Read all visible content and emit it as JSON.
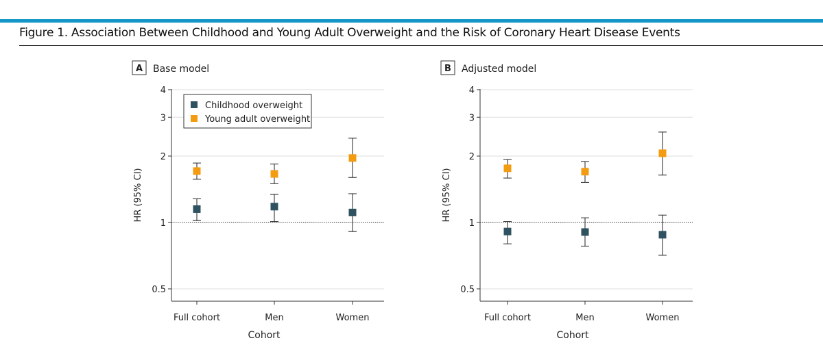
{
  "figure_title": "Figure 1. Association Between Childhood and Young Adult Overweight and the Risk of Coronary Heart Disease Events",
  "colors": {
    "header_bar": "#1497c6",
    "childhood": "#2f5260",
    "young_adult": "#f39c12"
  },
  "chart_data": [
    {
      "type": "scatter",
      "panel_letter": "A",
      "title": "Base model",
      "xlabel": "Cohort",
      "ylabel": "HR (95% CI)",
      "yscale": "log",
      "ylim": [
        0.5,
        4
      ],
      "yticks": [
        "0.5",
        "1",
        "2",
        "3",
        "4"
      ],
      "reference_line": 1,
      "categories": [
        "Full cohort",
        "Men",
        "Women"
      ],
      "legend": {
        "placement": "top-left",
        "entries": [
          "Childhood overweight",
          "Young adult overweight"
        ]
      },
      "series": [
        {
          "name": "Childhood overweight",
          "values": [
            1.15,
            1.18,
            1.11
          ],
          "ci_low": [
            1.02,
            1.01,
            0.91
          ],
          "ci_high": [
            1.28,
            1.34,
            1.35
          ]
        },
        {
          "name": "Young adult overweight",
          "values": [
            1.71,
            1.66,
            1.96
          ],
          "ci_low": [
            1.57,
            1.5,
            1.6
          ],
          "ci_high": [
            1.86,
            1.84,
            2.41
          ]
        }
      ]
    },
    {
      "type": "scatter",
      "panel_letter": "B",
      "title": "Adjusted model",
      "xlabel": "Cohort",
      "ylabel": "HR (95% CI)",
      "yscale": "log",
      "ylim": [
        0.5,
        4
      ],
      "yticks": [
        "0.5",
        "1",
        "2",
        "3",
        "4"
      ],
      "reference_line": 1,
      "categories": [
        "Full cohort",
        "Men",
        "Women"
      ],
      "series": [
        {
          "name": "Childhood overweight",
          "values": [
            0.91,
            0.905,
            0.88
          ],
          "ci_low": [
            0.8,
            0.78,
            0.71
          ],
          "ci_high": [
            1.01,
            1.05,
            1.08
          ]
        },
        {
          "name": "Young adult overweight",
          "values": [
            1.76,
            1.7,
            2.06
          ],
          "ci_low": [
            1.59,
            1.52,
            1.64
          ],
          "ci_high": [
            1.93,
            1.89,
            2.57
          ]
        }
      ]
    }
  ]
}
